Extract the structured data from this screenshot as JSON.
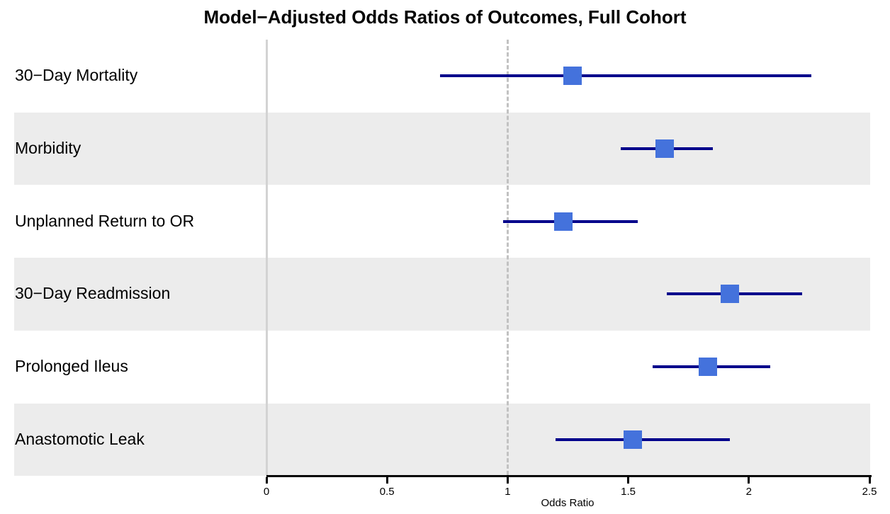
{
  "chart_data": {
    "type": "scatter",
    "chart_subtype": "forest_plot_horizontal_ci",
    "title": "Model−Adjusted Odds Ratios of Outcomes, Full Cohort",
    "xlabel": "Odds Ratio",
    "xlim": [
      0,
      2.5
    ],
    "xticks": [
      0,
      0.5,
      1,
      1.5,
      2,
      2.5
    ],
    "xtick_labels": [
      "0",
      "0.5",
      "1",
      "1.5",
      "2",
      "2.5"
    ],
    "reference_line_x": 1,
    "reference_line_style": "dashed",
    "zero_line_x": 0,
    "grid": false,
    "legend": false,
    "rows": [
      {
        "label": "30−Day Mortality",
        "or": 1.27,
        "ci_low": 0.72,
        "ci_high": 2.26,
        "band": false
      },
      {
        "label": "Morbidity",
        "or": 1.65,
        "ci_low": 1.47,
        "ci_high": 1.85,
        "band": true
      },
      {
        "label": "Unplanned Return to OR",
        "or": 1.23,
        "ci_low": 0.98,
        "ci_high": 1.54,
        "band": false
      },
      {
        "label": "30−Day Readmission",
        "or": 1.92,
        "ci_low": 1.66,
        "ci_high": 2.22,
        "band": true
      },
      {
        "label": "Prolonged Ileus",
        "or": 1.83,
        "ci_low": 1.6,
        "ci_high": 2.09,
        "band": false
      },
      {
        "label": "Anastomotic Leak",
        "or": 1.52,
        "ci_low": 1.2,
        "ci_high": 1.92,
        "band": true
      }
    ],
    "colors": {
      "marker": "#4472DC",
      "ci_line": "#00008B",
      "band": "#ECECEC",
      "reference_line": "#C2C2C2",
      "zero_line": "#D3D3D3",
      "axis": "#000000",
      "text": "#000000",
      "background": "#FFFFFF"
    }
  }
}
